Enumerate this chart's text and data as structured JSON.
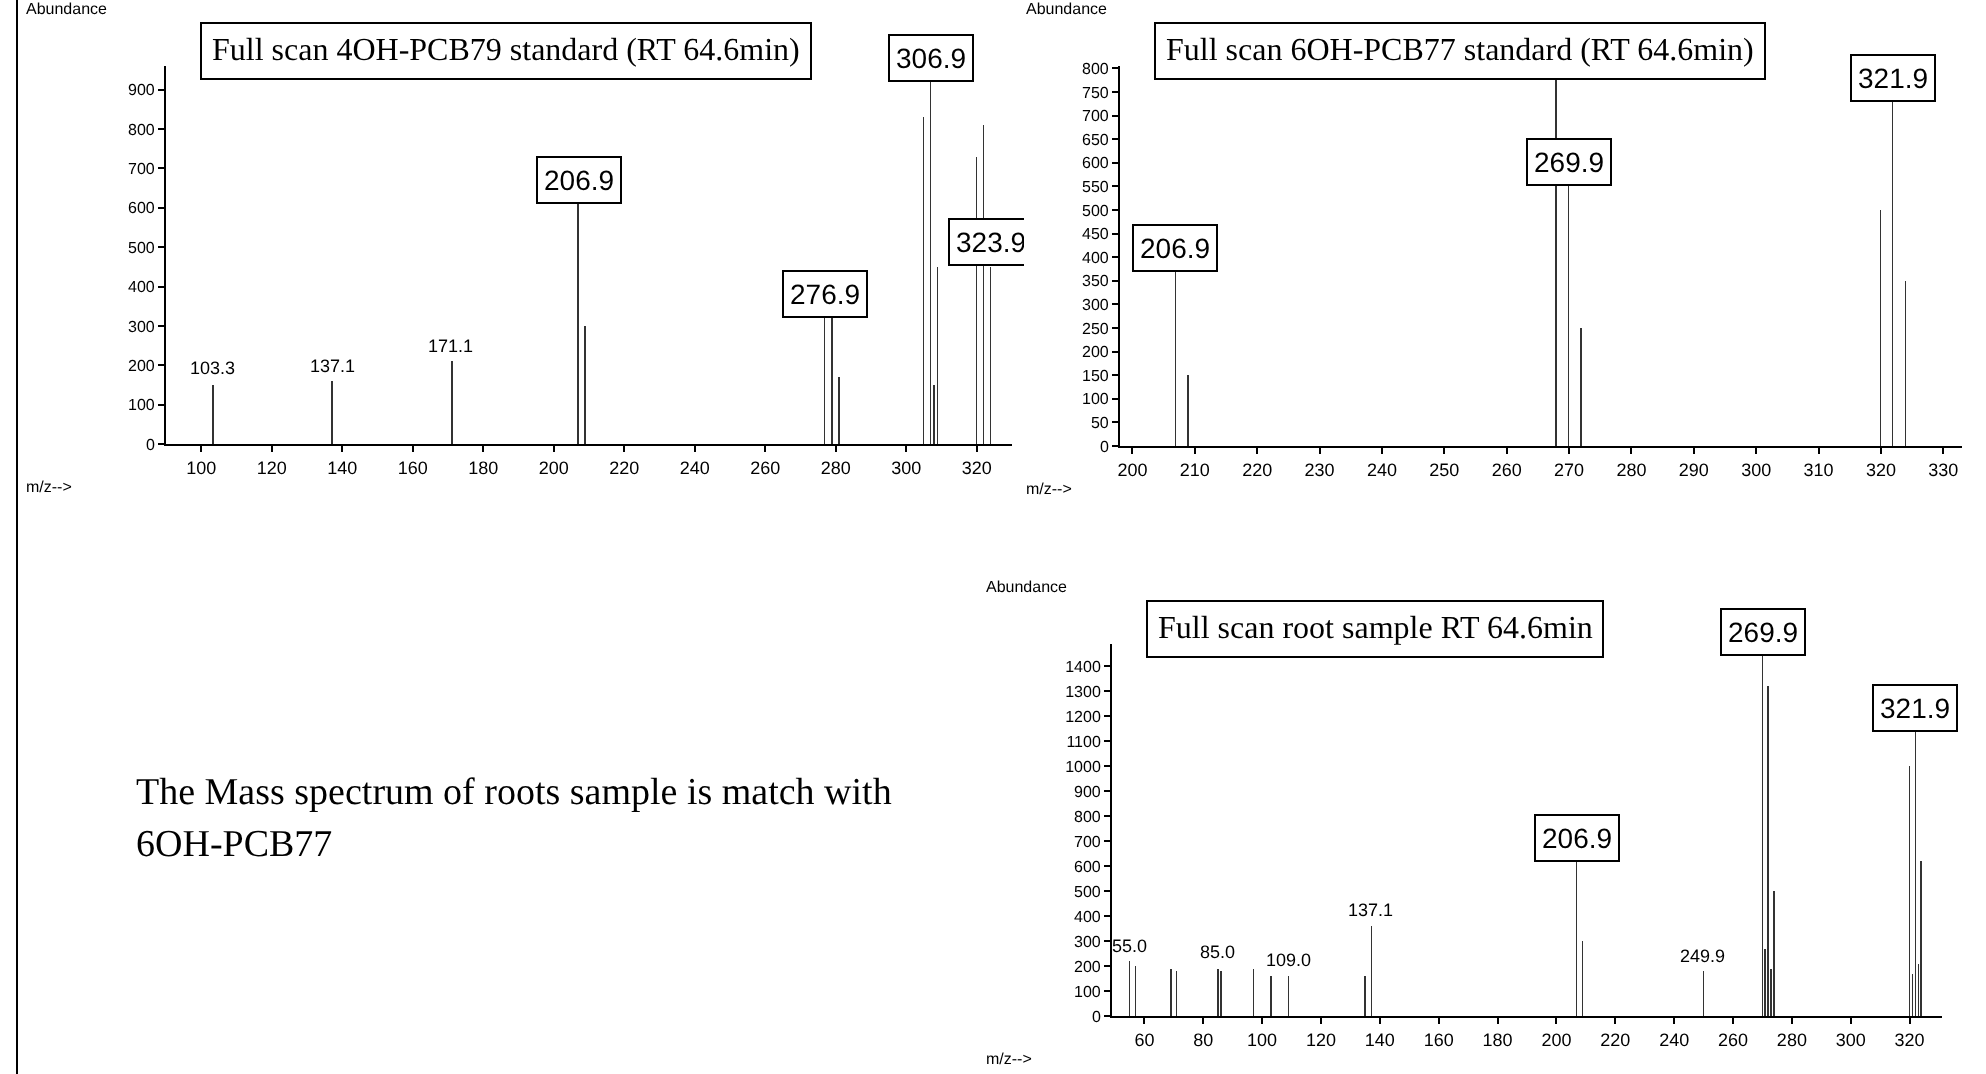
{
  "chart_data": [
    {
      "type": "bar",
      "title": "Full scan 4OH-PCB79 standard (RT 64.6min)",
      "xlabel": "m/z-->",
      "ylabel": "Abundance",
      "color": "#333333",
      "x": [
        103.3,
        137.1,
        171.1,
        206.9,
        208.9,
        276.9,
        278.9,
        280.9,
        304.9,
        306.9,
        307.9,
        308.9,
        319.9,
        321.9,
        323.9
      ],
      "values": [
        150,
        160,
        210,
        610,
        300,
        320,
        320,
        170,
        830,
        920,
        150,
        450,
        730,
        810,
        450
      ],
      "annotations": [
        {
          "text": "206.9",
          "x": 206.9,
          "y": 610
        },
        {
          "text": "276.9",
          "x": 276.9,
          "y": 320
        },
        {
          "text": "306.9",
          "x": 306.9,
          "y": 920
        },
        {
          "text": "323.9",
          "x": 323.9,
          "y": 450
        },
        {
          "text": "103.3",
          "x": 103.3,
          "y": 150
        },
        {
          "text": "137.1",
          "x": 137.1,
          "y": 160
        },
        {
          "text": "171.1",
          "x": 171.1,
          "y": 210
        }
      ],
      "xlim": [
        90,
        330
      ],
      "xticks": [
        100,
        120,
        140,
        160,
        180,
        200,
        220,
        240,
        260,
        280,
        300,
        320
      ],
      "ylim": [
        0,
        960
      ],
      "yticks": [
        0,
        100,
        200,
        300,
        400,
        500,
        600,
        700,
        800,
        900
      ]
    },
    {
      "type": "bar",
      "title": "Full scan 6OH-PCB77 standard (RT 64.6min)",
      "xlabel": "m/z-->",
      "ylabel": "Abundance",
      "color": "#333333",
      "x": [
        206.9,
        208.9,
        267.9,
        269.9,
        271.9,
        319.9,
        321.9,
        323.9
      ],
      "values": [
        370,
        150,
        780,
        550,
        250,
        500,
        730,
        350
      ],
      "annotations": [
        {
          "text": "206.9",
          "x": 206.9,
          "y": 370
        },
        {
          "text": "269.9",
          "x": 269.9,
          "y": 550
        },
        {
          "text": "321.9",
          "x": 321.9,
          "y": 730
        }
      ],
      "xlim": [
        198,
        333
      ],
      "xticks": [
        200,
        210,
        220,
        230,
        240,
        250,
        260,
        270,
        280,
        290,
        300,
        310,
        320,
        330
      ],
      "ylim": [
        0,
        805
      ],
      "yticks": [
        0,
        50,
        100,
        150,
        200,
        250,
        300,
        350,
        400,
        450,
        500,
        550,
        600,
        650,
        700,
        750,
        800
      ]
    },
    {
      "type": "other",
      "annotations": [
        "The Mass spectrum of roots sample is match with 6OH-PCB77"
      ]
    },
    {
      "type": "bar",
      "title": "Full scan root sample RT 64.6min",
      "xlabel": "m/z-->",
      "ylabel": "Abundance",
      "color": "#333333",
      "x": [
        55.0,
        57.0,
        69.0,
        71.0,
        85.0,
        86.0,
        97.0,
        103.0,
        109.0,
        135.0,
        137.1,
        206.9,
        208.9,
        249.9,
        269.9,
        270.9,
        271.9,
        272.9,
        273.9,
        319.9,
        320.9,
        321.9,
        322.9,
        323.9
      ],
      "values": [
        220,
        200,
        190,
        180,
        190,
        180,
        190,
        160,
        160,
        160,
        360,
        620,
        300,
        180,
        1440,
        270,
        1320,
        190,
        500,
        1000,
        170,
        1140,
        210,
        620
      ],
      "annotations": [
        {
          "text": "206.9",
          "x": 206.9,
          "y": 620
        },
        {
          "text": "269.9",
          "x": 269.9,
          "y": 1440
        },
        {
          "text": "321.9",
          "x": 321.9,
          "y": 1140
        },
        {
          "text": "55.0",
          "x": 55.0,
          "y": 220
        },
        {
          "text": "85.0",
          "x": 85.0,
          "y": 190
        },
        {
          "text": "109.0",
          "x": 109.0,
          "y": 160
        },
        {
          "text": "137.1",
          "x": 137.1,
          "y": 360
        },
        {
          "text": "249.9",
          "x": 249.9,
          "y": 180
        }
      ],
      "xlim": [
        49,
        331
      ],
      "xticks": [
        60,
        80,
        100,
        120,
        140,
        160,
        180,
        200,
        220,
        240,
        260,
        280,
        300,
        320
      ],
      "ylim": [
        0,
        1490
      ],
      "yticks": [
        0,
        100,
        200,
        300,
        400,
        500,
        600,
        700,
        800,
        900,
        1000,
        1100,
        1200,
        1300,
        1400
      ]
    }
  ]
}
